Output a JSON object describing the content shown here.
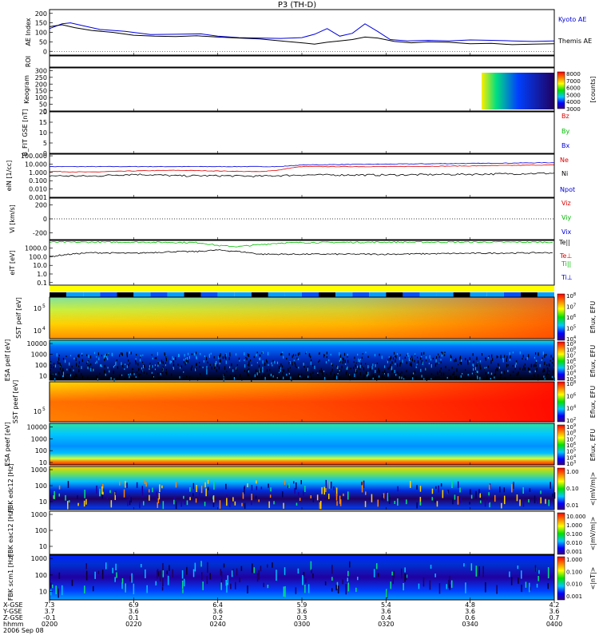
{
  "title": "P3 (TH-D)",
  "chart_data": {
    "type": "multi-panel time series / spectrogram",
    "time_axis": {
      "ticks": [
        "0200",
        "0220",
        "0240",
        "0300",
        "0320",
        "0340",
        "0400"
      ],
      "row_labels": [
        "X-GSE",
        "Y-GSE",
        "Z-GSE",
        "hhmm",
        "2006 Sep 08"
      ],
      "rows": [
        [
          "7.3",
          "6.9",
          "6.4",
          "5.9",
          "5.4",
          "4.8",
          "4.2"
        ],
        [
          "3.7",
          "3.6",
          "3.6",
          "3.6",
          "3.6",
          "3.6",
          "3.6"
        ],
        [
          "-0.1",
          "0.1",
          "0.2",
          "0.3",
          "0.4",
          "0.6",
          "0.7"
        ],
        [
          "0200",
          "0220",
          "0240",
          "0300",
          "0320",
          "0340",
          "0400"
        ]
      ]
    },
    "panels": [
      {
        "id": "ae",
        "ylabel": "AE Index",
        "yticks": [
          "0",
          "50",
          "100",
          "150",
          "200"
        ],
        "ylim": [
          -20,
          220
        ],
        "series": [
          {
            "name": "Kyoto AE",
            "color": "#0000dd",
            "x": [
              0,
              3,
              5,
              8,
              12,
              18,
              24,
              30,
              36,
              40,
              45,
              50,
              55,
              60,
              63,
              66,
              69,
              72,
              75,
              78,
              81,
              85,
              90,
              95,
              100,
              105,
              110,
              115,
              120
            ],
            "y": [
              120,
              145,
              150,
              135,
              115,
              105,
              88,
              90,
              92,
              80,
              72,
              70,
              68,
              72,
              90,
              120,
              80,
              95,
              145,
              105,
              62,
              55,
              58,
              55,
              60,
              58,
              55,
              52,
              55
            ]
          },
          {
            "name": "Themis AE",
            "color": "#000000",
            "x": [
              0,
              3,
              6,
              10,
              15,
              20,
              25,
              30,
              35,
              40,
              45,
              50,
              55,
              60,
              63,
              66,
              69,
              72,
              75,
              78,
              82,
              86,
              90,
              95,
              100,
              105,
              110,
              115,
              120
            ],
            "y": [
              130,
              140,
              125,
              110,
              100,
              85,
              80,
              78,
              82,
              75,
              70,
              65,
              55,
              45,
              38,
              48,
              55,
              62,
              75,
              70,
              52,
              45,
              50,
              48,
              40,
              42,
              35,
              38,
              40
            ]
          }
        ]
      },
      {
        "id": "roi",
        "ylabel": "ROI"
      },
      {
        "id": "keogram",
        "ylabel": "Keogram",
        "yticks": [
          "0",
          "50",
          "100",
          "150",
          "200",
          "250",
          "300"
        ],
        "colorbar": {
          "ticks": [
            "3000",
            "4000",
            "5000",
            "6000",
            "7000",
            "8000"
          ],
          "label": "[counts]"
        }
      },
      {
        "id": "bfield",
        "ylabel": "B_FIT GSE [nT]",
        "yticks": [
          "0",
          "5",
          "10",
          "15",
          "20"
        ],
        "legend": [
          {
            "name": "Bz",
            "color": "#dd0000"
          },
          {
            "name": "By",
            "color": "#00bb00"
          },
          {
            "name": "Bx",
            "color": "#0000dd"
          }
        ]
      },
      {
        "id": "density",
        "ylabel": "eiN [1/cc]",
        "yticks": [
          "0.001",
          "0.010",
          "0.100",
          "1.000",
          "10.000",
          "100.000"
        ],
        "scale": "log",
        "legend": [
          {
            "name": "Ne",
            "color": "#dd0000"
          },
          {
            "name": "Ni",
            "color": "#000000"
          },
          {
            "name": "Npot",
            "color": "#0000dd"
          }
        ],
        "series": [
          {
            "name": "Npot",
            "color": "#0000dd",
            "x": [
              0,
              20,
              40,
              55,
              60,
              80,
              100,
              120
            ],
            "y": [
              5,
              5,
              5,
              5,
              8,
              10,
              12,
              15
            ]
          },
          {
            "name": "Ne",
            "color": "#dd0000",
            "x": [
              0,
              10,
              20,
              30,
              40,
              50,
              55,
              60,
              80,
              100,
              120
            ],
            "y": [
              1.3,
              1.1,
              1.5,
              1.8,
              1.5,
              1.2,
              2,
              5,
              5,
              6,
              8
            ]
          },
          {
            "name": "Ni",
            "color": "#000000",
            "x": [
              0,
              10,
              20,
              30,
              40,
              50,
              60,
              80,
              100,
              120
            ],
            "y": [
              0.4,
              0.35,
              0.6,
              0.4,
              0.4,
              0.35,
              0.5,
              0.5,
              0.6,
              0.8
            ]
          }
        ]
      },
      {
        "id": "velocity",
        "ylabel": "Vi [km/s]",
        "yticks": [
          "-200",
          "0",
          "200"
        ],
        "legend": [
          {
            "name": "Viz",
            "color": "#dd0000"
          },
          {
            "name": "Viy",
            "color": "#00bb00"
          },
          {
            "name": "Vix",
            "color": "#0000dd"
          }
        ]
      },
      {
        "id": "temperature",
        "ylabel": "eiT [eV]",
        "yticks": [
          "0.1",
          "1.0",
          "10.0",
          "100.0",
          "1000.0"
        ],
        "scale": "log",
        "legend": [
          {
            "name": "Te||",
            "color": "#000000"
          },
          {
            "name": "Te⊥",
            "color": "#dd0000"
          },
          {
            "name": "Ti||",
            "color": "#00bb00"
          },
          {
            "name": "Ti⊥",
            "color": "#0000dd"
          }
        ],
        "series": [
          {
            "name": "Ti||",
            "color": "#00bb00",
            "x": [
              0,
              20,
              35,
              40,
              45,
              50,
              55,
              60,
              80,
              100,
              120
            ],
            "y": [
              5000,
              5000,
              4500,
              2000,
              1500,
              2500,
              4000,
              4500,
              5000,
              5000,
              5000
            ]
          },
          {
            "name": "Te||",
            "color": "#000000",
            "x": [
              0,
              5,
              10,
              20,
              30,
              35,
              40,
              45,
              50,
              60,
              80,
              100,
              120
            ],
            "y": [
              100,
              200,
              300,
              250,
              400,
              400,
              600,
              400,
              200,
              200,
              200,
              250,
              300
            ]
          }
        ]
      },
      {
        "id": "sst_e",
        "ylabel": "SST peif [eV]",
        "ytick_exponents": [
          "4",
          "5"
        ],
        "colorbar": {
          "exponents": [
            "4",
            "5",
            "6",
            "7",
            "8"
          ],
          "label": "Eflux, EFU"
        }
      },
      {
        "id": "esa_e",
        "ylabel": "ESA peif [eV]",
        "yticks": [
          "10",
          "100",
          "1000",
          "10000"
        ],
        "colorbar": {
          "exponents": [
            "3",
            "4",
            "5",
            "6",
            "7",
            "8",
            "9"
          ],
          "label": "Eflux, EFU"
        }
      },
      {
        "id": "sst_i",
        "ylabel": "SST peef [eV]",
        "ytick_exponents": [
          "5"
        ],
        "colorbar": {
          "exponents": [
            "2",
            "4",
            "6",
            "8"
          ],
          "label": "Eflux, EFU"
        }
      },
      {
        "id": "esa_i",
        "ylabel": "ESA peef [eV]",
        "yticks": [
          "10",
          "100",
          "1000",
          "10000"
        ],
        "colorbar": {
          "exponents": [
            "3",
            "4",
            "5",
            "6",
            "7",
            "8",
            "9"
          ],
          "label": "Eflux, EFU"
        }
      },
      {
        "id": "fbk1",
        "ylabel": "FBK edc12 [Hz]",
        "yticks": [
          "10",
          "100",
          "1000"
        ],
        "colorbar": {
          "ticks": [
            "0.01",
            "0.10",
            "1.00"
          ],
          "label": "<|mV/m|>"
        }
      },
      {
        "id": "fbk2",
        "ylabel": "FBK eac12 [Hz]",
        "yticks": [
          "10",
          "100",
          "1000"
        ],
        "colorbar": {
          "ticks": [
            "0.001",
            "0.010",
            "0.100",
            "1.000",
            "10.000"
          ],
          "label": "<|mV/m|>"
        }
      },
      {
        "id": "fbk3",
        "ylabel": "FBK scm1 [Hz]",
        "yticks": [
          "10",
          "100",
          "1000"
        ],
        "colorbar": {
          "ticks": [
            "0.001",
            "0.010",
            "0.100",
            "1.000"
          ],
          "label": "<|nT|>"
        }
      }
    ]
  },
  "colors": {
    "kyoto": "#0000dd",
    "themis": "#000000",
    "red": "#dd0000",
    "green": "#00bb00",
    "blue": "#0000dd"
  }
}
